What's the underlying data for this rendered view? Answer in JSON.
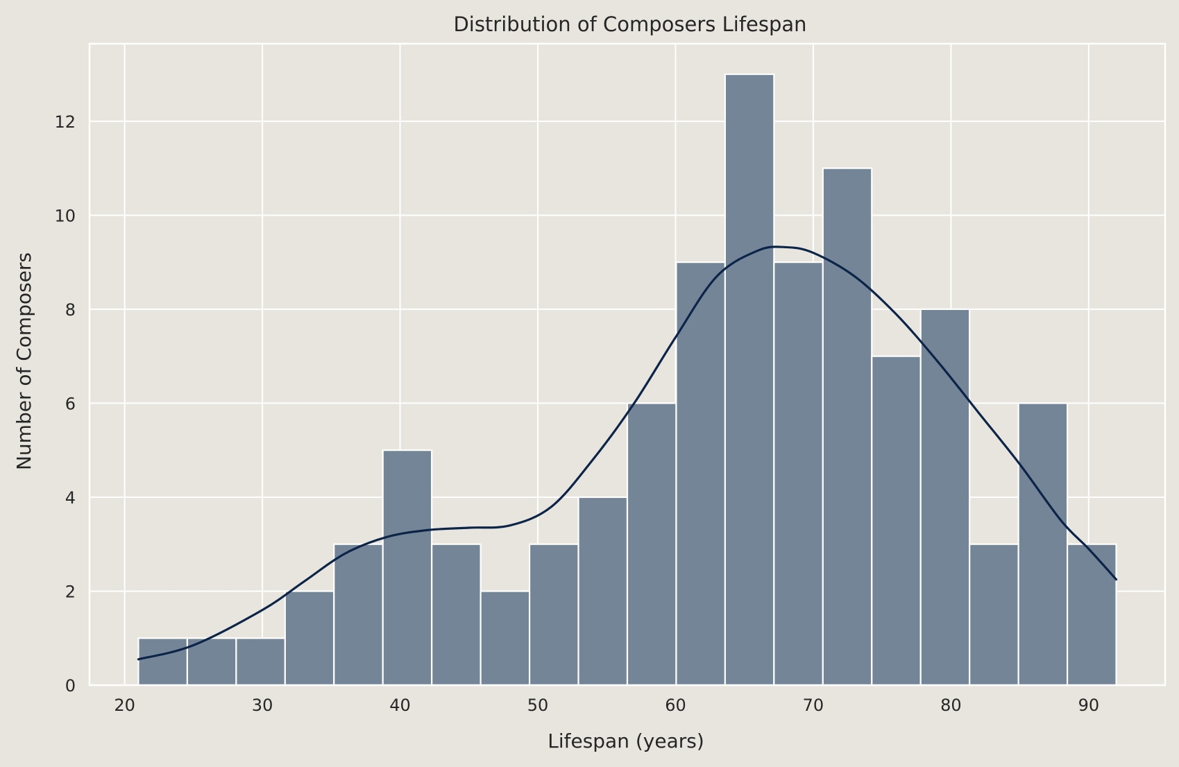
{
  "chart_data": {
    "type": "bar",
    "title": "Distribution of Composers Lifespan",
    "xlabel": "Lifespan (years)",
    "ylabel": "Number of Composers",
    "xlim": [
      17.45,
      95.55
    ],
    "ylim": [
      0,
      13.65
    ],
    "xticks": [
      20,
      30,
      40,
      50,
      60,
      70,
      80,
      90
    ],
    "yticks": [
      0,
      2,
      4,
      6,
      8,
      10,
      12
    ],
    "grid": true,
    "bins": {
      "start": 21,
      "end": 92,
      "edges": [
        21,
        24.55,
        28.1,
        31.65,
        35.2,
        38.75,
        42.3,
        45.85,
        49.4,
        52.95,
        56.5,
        60.05,
        63.6,
        67.15,
        70.7,
        74.25,
        77.8,
        81.35,
        84.9,
        88.45,
        92
      ],
      "counts": [
        1,
        1,
        1,
        2,
        3,
        5,
        3,
        2,
        3,
        4,
        6,
        9,
        13,
        9,
        11,
        7,
        8,
        3,
        6,
        3
      ]
    },
    "kde_curve": {
      "x": [
        21,
        25,
        30,
        33,
        36,
        39,
        42,
        45,
        48,
        51,
        54,
        57,
        60,
        63,
        66,
        68,
        70,
        73,
        76,
        79,
        82,
        85,
        88,
        90,
        92
      ],
      "y": [
        0.55,
        0.85,
        1.6,
        2.2,
        2.8,
        3.15,
        3.3,
        3.35,
        3.4,
        3.8,
        4.8,
        6.0,
        7.4,
        8.7,
        9.25,
        9.32,
        9.2,
        8.7,
        7.9,
        6.9,
        5.8,
        4.7,
        3.5,
        2.9,
        2.25
      ]
    },
    "colors": {
      "background": "#e7e5de",
      "grid": "#ffffff",
      "bar_fill": "#748597",
      "bar_edge": "#ffffff",
      "kde_line": "#0b2447"
    }
  }
}
